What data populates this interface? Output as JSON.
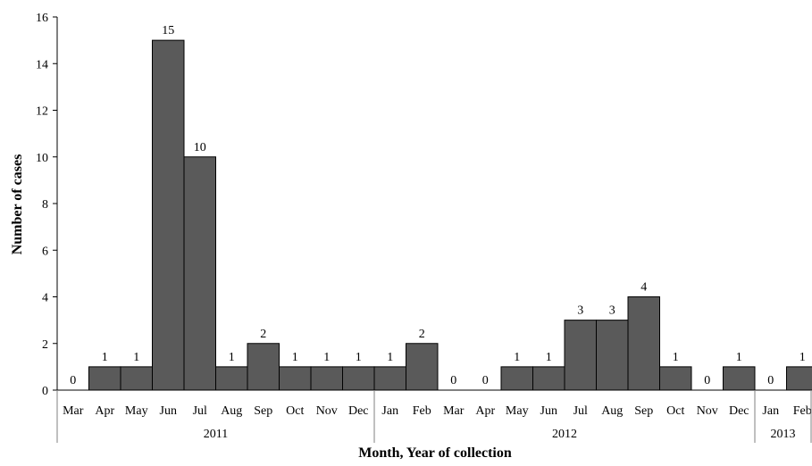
{
  "chart_data": {
    "type": "bar",
    "categories": [
      "Mar",
      "Apr",
      "May",
      "Jun",
      "Jul",
      "Aug",
      "Sep",
      "Oct",
      "Nov",
      "Dec",
      "Jan",
      "Feb",
      "Mar",
      "Apr",
      "May",
      "Jun",
      "Jul",
      "Aug",
      "Sep",
      "Oct",
      "Nov",
      "Dec",
      "Jan",
      "Feb"
    ],
    "values": [
      0,
      1,
      1,
      15,
      10,
      1,
      2,
      1,
      1,
      1,
      1,
      2,
      0,
      0,
      1,
      1,
      3,
      3,
      4,
      1,
      0,
      1,
      0,
      1
    ],
    "groups": [
      {
        "label": "2011",
        "count": 10
      },
      {
        "label": "2012",
        "count": 12
      },
      {
        "label": "2013",
        "count": 2
      }
    ],
    "title": "",
    "xlabel": "Month, Year of collection",
    "ylabel": "Number of cases",
    "ylim": [
      0,
      16
    ],
    "yticks": [
      0,
      2,
      4,
      6,
      8,
      10,
      12,
      14,
      16
    ],
    "grid": false,
    "legend": "none",
    "bar_color": "#5a5a5a"
  }
}
